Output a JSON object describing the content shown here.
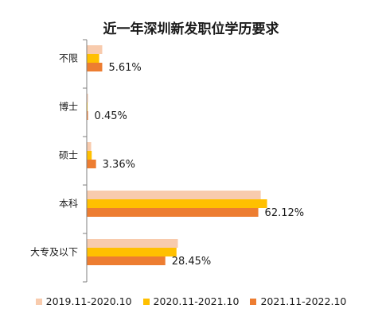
{
  "chart_data": {
    "type": "bar",
    "orientation": "horizontal",
    "title": "近一年深圳新发职位学历要求",
    "categories": [
      "不限",
      "博士",
      "硕士",
      "本科",
      "大专及以下"
    ],
    "series": [
      {
        "name": "2019.11-2020.10",
        "color": "#F8CBAD",
        "values": [
          5.61,
          0.45,
          1.6,
          63.0,
          33.0
        ]
      },
      {
        "name": "2020.11-2021.10",
        "color": "#FFC000",
        "values": [
          4.5,
          0.3,
          1.8,
          65.3,
          32.5
        ]
      },
      {
        "name": "2021.11-2022.10",
        "color": "#ED7D31",
        "values": [
          5.61,
          0.45,
          3.36,
          62.12,
          28.45
        ]
      }
    ],
    "data_labels": [
      "5.61%",
      "0.45%",
      "3.36%",
      "62.12%",
      "28.45%"
    ],
    "xlim": [
      0,
      100
    ],
    "grid": false,
    "legend_position": "bottom"
  }
}
